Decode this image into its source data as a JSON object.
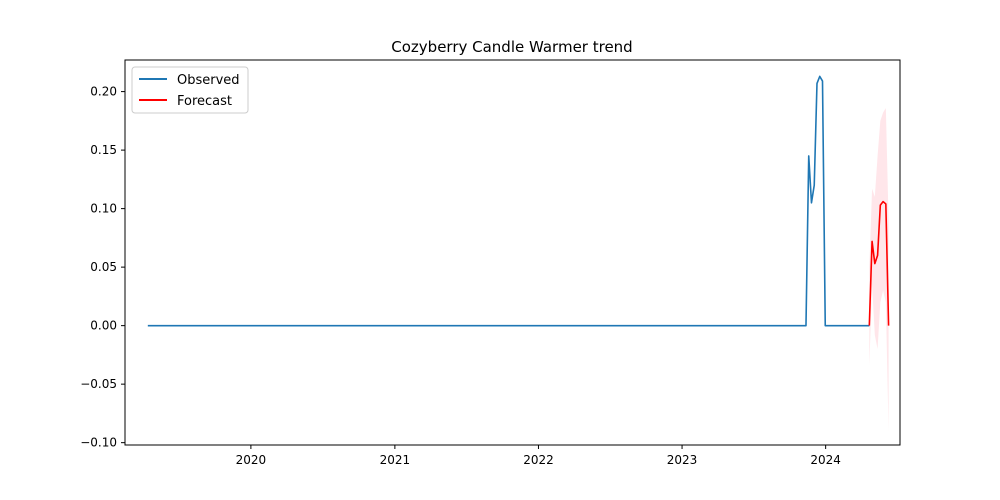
{
  "chart_data": {
    "type": "line",
    "title": "Cozyberry Candle Warmer trend",
    "xlabel": "",
    "ylabel": "",
    "x_ticks": [
      "2020",
      "2021",
      "2022",
      "2023",
      "2024"
    ],
    "y_ticks": [
      "0.20",
      "0.15",
      "0.10",
      "0.05",
      "0.00",
      "−0.05",
      "−0.10"
    ],
    "xlim": [
      "2019-02-15",
      "2024-07-08"
    ],
    "ylim": [
      -0.102,
      0.227
    ],
    "legend": {
      "position": "top-left"
    },
    "grid": false,
    "series": [
      {
        "name": "Observed",
        "color": "#1f77b4",
        "points": [
          [
            "2019-04-14",
            0.0
          ],
          [
            "2023-11-12",
            0.0
          ],
          [
            "2023-11-19",
            0.145
          ],
          [
            "2023-11-26",
            0.105
          ],
          [
            "2023-12-03",
            0.12
          ],
          [
            "2023-12-10",
            0.207
          ],
          [
            "2023-12-17",
            0.213
          ],
          [
            "2023-12-24",
            0.209
          ],
          [
            "2023-12-31",
            0.0
          ],
          [
            "2024-04-21",
            0.0
          ]
        ]
      },
      {
        "name": "Forecast",
        "color": "#ff0000",
        "points": [
          [
            "2024-04-21",
            0.0
          ],
          [
            "2024-04-28",
            0.072
          ],
          [
            "2024-05-05",
            0.053
          ],
          [
            "2024-05-12",
            0.06
          ],
          [
            "2024-05-19",
            0.103
          ],
          [
            "2024-05-26",
            0.106
          ],
          [
            "2024-06-02",
            0.104
          ],
          [
            "2024-06-09",
            0.0
          ]
        ],
        "interval_color": "#ffc0cb",
        "interval": [
          [
            "2024-04-21",
            -0.034,
            0.05
          ],
          [
            "2024-04-28",
            0.035,
            0.117
          ],
          [
            "2024-05-05",
            -0.008,
            0.11
          ],
          [
            "2024-05-12",
            -0.02,
            0.145
          ],
          [
            "2024-05-19",
            0.02,
            0.175
          ],
          [
            "2024-05-26",
            0.03,
            0.182
          ],
          [
            "2024-06-02",
            0.02,
            0.186
          ],
          [
            "2024-06-09",
            -0.09,
            0.09
          ]
        ]
      }
    ]
  }
}
